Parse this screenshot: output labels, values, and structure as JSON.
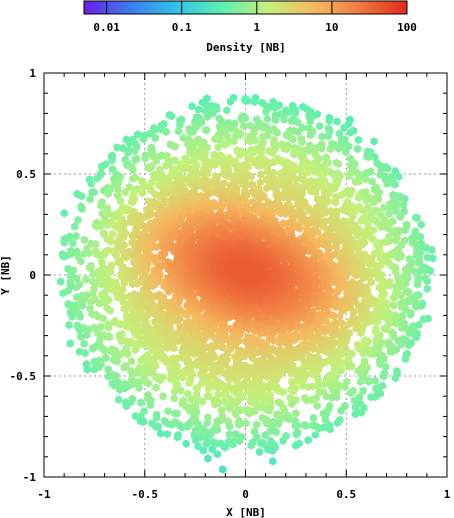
{
  "chart_data": {
    "type": "scatter",
    "subtype": "density-colored scatter (hexagonal markers)",
    "xlabel": "X [NB]",
    "ylabel": "Y [NB]",
    "xlim": [
      -1,
      1
    ],
    "ylim": [
      -1,
      1
    ],
    "x_ticks": [
      "-1",
      "-0.5",
      "0",
      "0.5",
      "1"
    ],
    "y_ticks": [
      "-1",
      "-0.5",
      "0",
      "0.5",
      "1"
    ],
    "grid": true,
    "colorbar": {
      "label": "Density [NB]",
      "scale": "log",
      "range": [
        0.005,
        100
      ],
      "tick_values": [
        0.01,
        0.1,
        1,
        10,
        100
      ],
      "tick_labels": [
        "0.01",
        "0.1",
        "1",
        "10",
        "100"
      ],
      "colormap": [
        "#6a1fe6",
        "#3a7df0",
        "#2fc3e8",
        "#5ef0b0",
        "#c4f07a",
        "#f5b85e",
        "#f07840",
        "#e02a1a"
      ]
    },
    "distribution": {
      "shape": "elliptical cloud centered at origin, tilted (denser core elongated along y = -0.35x)",
      "core_center": [
        0.0,
        0.02
      ],
      "approx_extent_x": [
        -0.95,
        0.95
      ],
      "approx_extent_y": [
        -0.98,
        0.98
      ],
      "peak_density": 60
    }
  }
}
